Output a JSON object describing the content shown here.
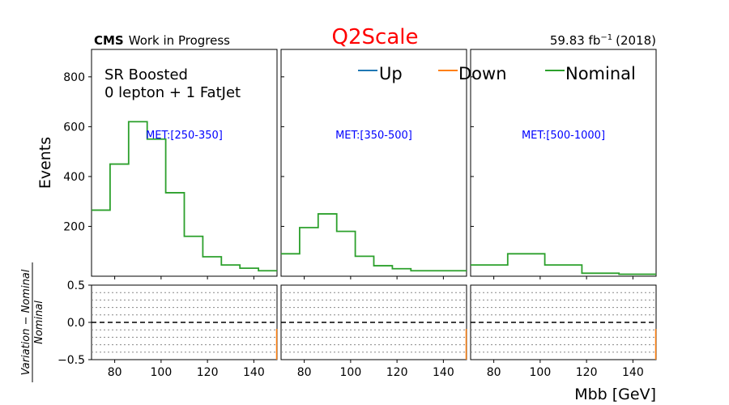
{
  "chart_data": {
    "type": "line",
    "title": "Q2Scale",
    "header_left_bold": "CMS",
    "header_left_text": "Work in Progress",
    "header_right": "59.83 fb",
    "header_right_sup": "−1",
    "header_right_suffix": "(2018)",
    "region_line1": "SR Boosted",
    "region_line2": "0 lepton + 1 FatJet",
    "xlabel": "Mbb [GeV]",
    "ylabel": "Events",
    "ratio_ylabel_numerator": "Variation − Nominal",
    "ratio_ylabel_denominator": "Nominal",
    "xlim": [
      70,
      150
    ],
    "ylim": [
      0,
      910
    ],
    "ratio_ylim": [
      -0.5,
      0.5
    ],
    "x_ticks": [
      80,
      100,
      120,
      140
    ],
    "y_ticks": [
      200,
      400,
      600,
      800
    ],
    "ratio_y_ticks": [
      -0.5,
      0.0,
      0.5
    ],
    "ratio_y_tick_labels": [
      "−0.5",
      "0.0",
      "0.5"
    ],
    "bin_edges": [
      70,
      78,
      86,
      94,
      102,
      110,
      118,
      126,
      134,
      142,
      150
    ],
    "legend": [
      {
        "name": "Up",
        "color": "#1f77b4"
      },
      {
        "name": "Down",
        "color": "#ff7f0e"
      },
      {
        "name": "Nominal",
        "color": "#2ca02c"
      }
    ],
    "panels": [
      {
        "label": "MET:[250-350]",
        "nominal": [
          265,
          450,
          620,
          550,
          335,
          160,
          78,
          45,
          32,
          22
        ]
      },
      {
        "label": "MET:[350-500]",
        "nominal": [
          90,
          195,
          250,
          180,
          80,
          42,
          30,
          22,
          22,
          22
        ]
      },
      {
        "label": "MET:[500-1000]",
        "nominal": [
          45,
          45,
          90,
          90,
          45,
          45,
          12,
          12,
          8,
          8
        ]
      }
    ],
    "colors": {
      "title": "#ff0000",
      "met_label": "#0000ff"
    }
  }
}
